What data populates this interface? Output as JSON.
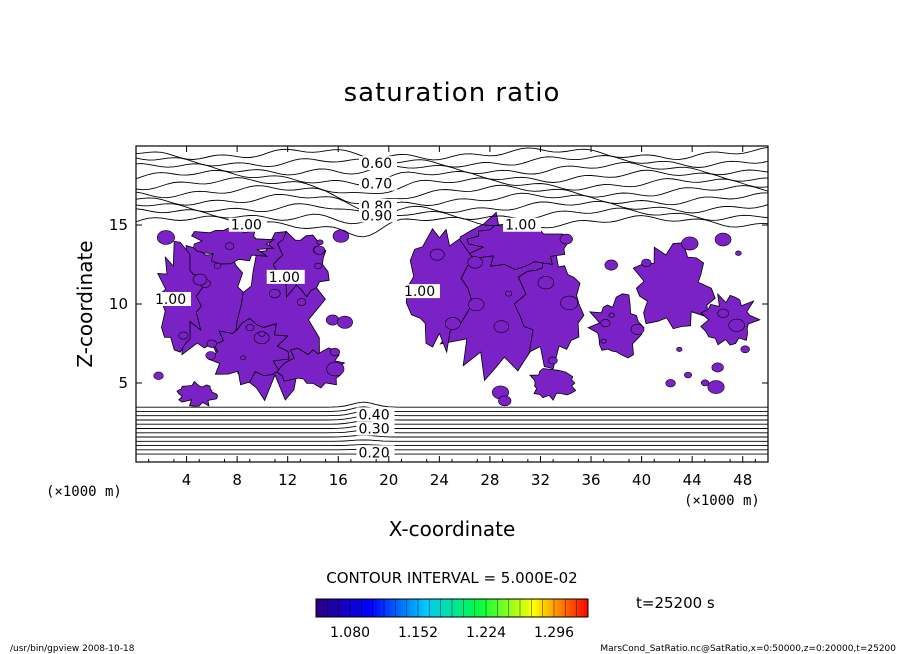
{
  "chart_data": {
    "type": "contour",
    "title": "saturation ratio",
    "xlabel": "X-coordinate",
    "ylabel": "Z-coordinate",
    "x_unit": "(×1000 m)",
    "z_unit": "(×1000 m)",
    "xlim": [
      0,
      50
    ],
    "ylim": [
      0,
      20
    ],
    "x_ticks": [
      4,
      8,
      12,
      16,
      20,
      24,
      28,
      32,
      36,
      40,
      44,
      48
    ],
    "y_ticks": [
      5,
      10,
      15
    ],
    "contour_interval_text": "CONTOUR INTERVAL = 5.000E-02",
    "time_text": "t=25200 s",
    "upper_contour_labels": [
      {
        "text": "0.60",
        "x": 17.8,
        "y": 18.6
      },
      {
        "text": "0.70",
        "x": 17.8,
        "y": 17.3
      },
      {
        "text": "0.80",
        "x": 17.8,
        "y": 15.9
      },
      {
        "text": "0.90",
        "x": 17.8,
        "y": 15.3
      },
      {
        "text": "1.00",
        "x": 7.5,
        "y": 14.7
      },
      {
        "text": "1.00",
        "x": 29.2,
        "y": 14.7
      },
      {
        "text": "1.00",
        "x": 10.5,
        "y": 11.4
      },
      {
        "text": "1.00",
        "x": 1.5,
        "y": 10.0
      },
      {
        "text": "1.00",
        "x": 21.2,
        "y": 10.5
      }
    ],
    "lower_contour_labels": [
      {
        "text": "0.40",
        "x": 17.6,
        "y": 2.7
      },
      {
        "text": "0.30",
        "x": 17.6,
        "y": 1.8
      },
      {
        "text": "0.20",
        "x": 17.6,
        "y": 0.3
      }
    ],
    "shaded_level_min": 1.0,
    "shade_color": "#7b22c7",
    "colorbar": {
      "tick_labels": [
        "1.080",
        "1.152",
        "1.224",
        "1.296"
      ],
      "range": [
        1.044,
        1.332
      ],
      "colors": [
        "#2a0080",
        "#0000ff",
        "#00c8ff",
        "#00ff40",
        "#ffff00",
        "#ff0000"
      ]
    },
    "grid": false
  },
  "footer": {
    "left": "/usr/bin/gpview   2008-10-18",
    "right": "MarsCond_SatRatio.nc@SatRatio,x=0:50000,z=0:20000,t=25200"
  }
}
